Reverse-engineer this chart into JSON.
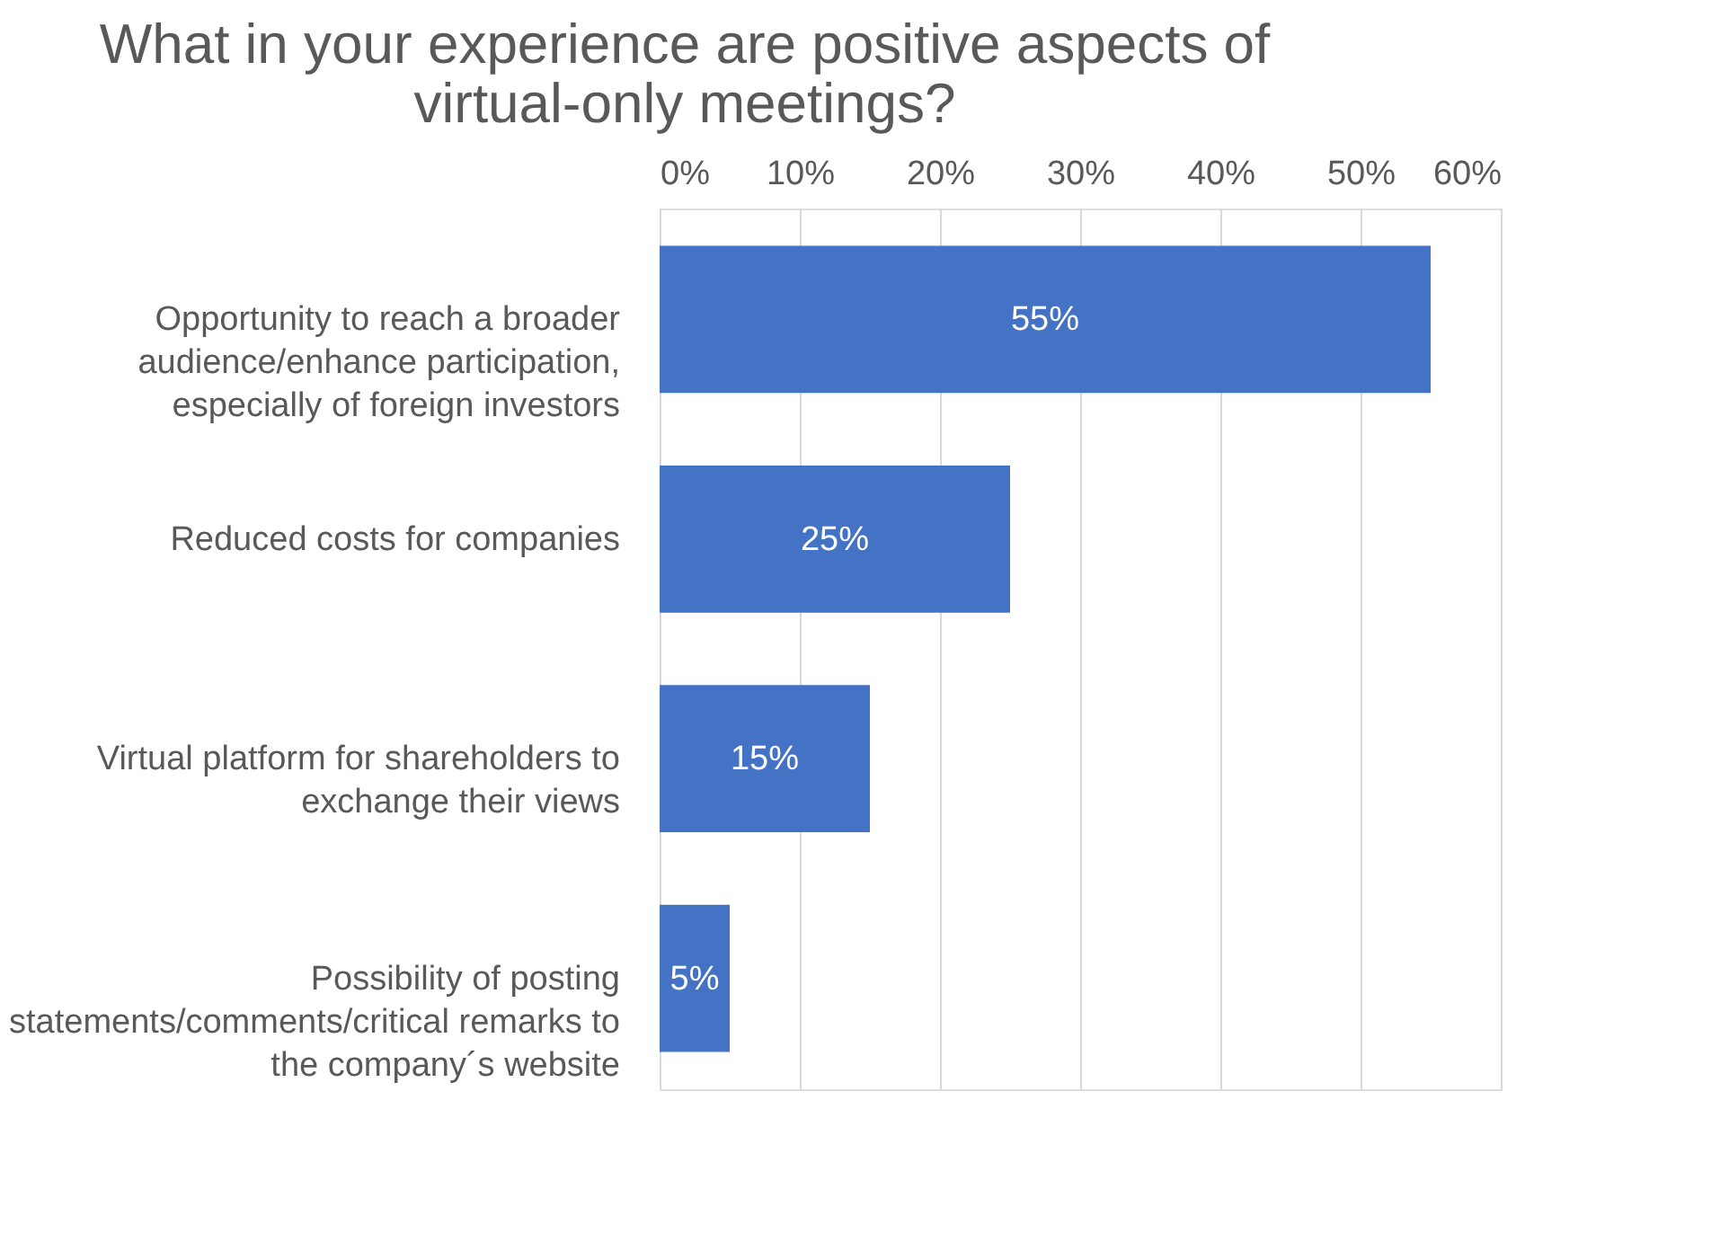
{
  "chart_data": {
    "type": "bar",
    "orientation": "horizontal",
    "title": "What in your experience are positive aspects of virtual-only meetings?",
    "categories": [
      "Opportunity to reach a broader audience/enhance participation, especially of foreign investors",
      "Reduced costs for companies",
      "Virtual platform for shareholders to exchange their views",
      "Possibility of posting statements/comments/critical remarks to the company´s website"
    ],
    "values": [
      55,
      25,
      15,
      5
    ],
    "value_labels": [
      "55%",
      "25%",
      "15%",
      "5%"
    ],
    "color": "#4472c4",
    "xlim": [
      0,
      60
    ],
    "xticks": [
      {
        "value": 0,
        "label": "0%"
      },
      {
        "value": 10,
        "label": "10%"
      },
      {
        "value": 20,
        "label": "20%"
      },
      {
        "value": 30,
        "label": "30%"
      },
      {
        "value": 40,
        "label": "40%"
      },
      {
        "value": 50,
        "label": "50%"
      },
      {
        "value": 60,
        "label": "60%"
      }
    ],
    "grid": "x"
  }
}
